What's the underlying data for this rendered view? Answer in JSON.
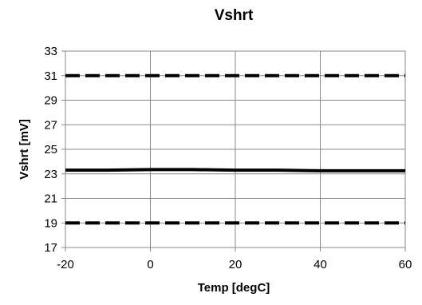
{
  "chart_data": {
    "type": "line",
    "title": "Vshrt",
    "xlabel": "Temp [degC]",
    "ylabel": "Vshrt [mV]",
    "xlim": [
      -20,
      60
    ],
    "ylim": [
      17,
      33
    ],
    "x_ticks": [
      -20,
      0,
      20,
      40,
      60
    ],
    "y_ticks": [
      17,
      19,
      21,
      23,
      25,
      27,
      29,
      31,
      33
    ],
    "grid": true,
    "legend": "none",
    "series": [
      {
        "style": "dashed",
        "color": "#000000",
        "x": [
          -20,
          60
        ],
        "y": [
          31,
          31
        ]
      },
      {
        "style": "solid",
        "color": "#000000",
        "x": [
          -20,
          -10,
          0,
          10,
          20,
          30,
          40,
          50,
          60
        ],
        "y": [
          23.3,
          23.3,
          23.35,
          23.35,
          23.3,
          23.3,
          23.25,
          23.25,
          23.25
        ]
      },
      {
        "style": "dashed",
        "color": "#000000",
        "x": [
          -20,
          60
        ],
        "y": [
          19,
          19
        ]
      }
    ]
  }
}
